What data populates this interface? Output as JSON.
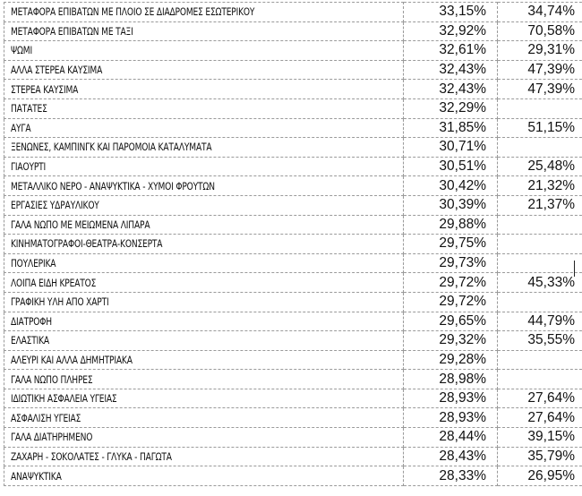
{
  "rows": [
    {
      "name": "ΜΕΤΑΦΟΡΑ ΕΠΙΒΑΤΩΝ ΜΕ ΠΛΟΙΟ ΣΕ ΔΙΑΔΡΟΜΕΣ ΕΣΩΤΕΡΙΚΟΥ",
      "v1": "33,15%",
      "v2": "34,74%"
    },
    {
      "name": "ΜΕΤΑΦΟΡΑ ΕΠΙΒΑΤΩΝ ΜΕ ΤΑΞΙ",
      "v1": "32,92%",
      "v2": "70,58%"
    },
    {
      "name": "ΨΩΜΙ",
      "v1": "32,61%",
      "v2": "29,31%"
    },
    {
      "name": "ΑΛΛΑ ΣΤΕΡΕΑ ΚΑΥΣΙΜΑ",
      "v1": "32,43%",
      "v2": "47,39%"
    },
    {
      "name": "ΣΤΕΡΕΑ ΚΑΥΣΙΜΑ",
      "v1": "32,43%",
      "v2": "47,39%"
    },
    {
      "name": "ΠΑΤΑΤΕΣ",
      "v1": "32,29%",
      "v2": ""
    },
    {
      "name": "ΑΥΓΑ",
      "v1": "31,85%",
      "v2": "51,15%"
    },
    {
      "name": "ΞΕΝΩΝΕΣ, ΚΑΜΠΙΝΓΚ ΚΑΙ ΠΑΡΟΜΟΙΑ ΚΑΤΑΛΥΜΑΤΑ",
      "v1": "30,71%",
      "v2": ""
    },
    {
      "name": "ΓΙΑΟΥΡΤΙ",
      "v1": "30,51%",
      "v2": "25,48%"
    },
    {
      "name": "ΜΕΤΑΛΛΙΚΟ ΝΕΡΟ - ΑΝΑΨΥΚΤΙΚΑ - ΧΥΜΟΙ ΦΡΟΥΤΩΝ",
      "v1": "30,42%",
      "v2": "21,32%"
    },
    {
      "name": "ΕΡΓΑΣΙΕΣ ΥΔΡΑΥΛΙΚΟΥ",
      "v1": "30,39%",
      "v2": "21,37%"
    },
    {
      "name": "ΓΑΛΑ ΝΩΠΟ ΜΕ ΜΕΙΩΜΕΝΑ ΛΙΠΑΡΑ",
      "v1": "29,88%",
      "v2": ""
    },
    {
      "name": "ΚΙΝΗΜΑΤΟΓΡΑΦΟΙ-ΘΕΑΤΡΑ-ΚΟΝΣΕΡΤΑ",
      "v1": "29,75%",
      "v2": ""
    },
    {
      "name": "ΠΟΥΛΕΡΙΚΑ",
      "v1": "29,73%",
      "v2": ""
    },
    {
      "name": "ΛΟΙΠΑ ΕΙΔΗ ΚΡΕΑΤΟΣ",
      "v1": "29,72%",
      "v2": "45,33%"
    },
    {
      "name": "ΓΡΑΦΙΚΗ ΥΛΗ ΑΠΟ ΧΑΡΤΙ",
      "v1": "29,72%",
      "v2": ""
    },
    {
      "name": "ΔΙΑΤΡΟΦΗ",
      "v1": "29,65%",
      "v2": "44,79%"
    },
    {
      "name": "ΕΛΑΣΤΙΚΑ",
      "v1": "29,32%",
      "v2": "35,55%"
    },
    {
      "name": "ΑΛΕΥΡΙ ΚΑΙ ΑΛΛΑ ΔΗΜΗΤΡΙΑΚΑ",
      "v1": "29,28%",
      "v2": ""
    },
    {
      "name": "ΓΑΛΑ ΝΩΠΟ ΠΛΗΡΕΣ",
      "v1": "28,98%",
      "v2": ""
    },
    {
      "name": "ΙΔΙΩΤΙΚΗ ΑΣΦΑΛΕΙΑ ΥΓΕΙΑΣ",
      "v1": "28,93%",
      "v2": "27,64%"
    },
    {
      "name": "ΑΣΦΑΛΙΣΗ ΥΓΕΙΑΣ",
      "v1": "28,93%",
      "v2": "27,64%"
    },
    {
      "name": "ΓΑΛΑ ΔΙΑΤΗΡΗΜΕΝΟ",
      "v1": "28,44%",
      "v2": "39,15%"
    },
    {
      "name": "ΖΑΧΑΡΗ - ΣΟΚΟΛΑΤΕΣ - ΓΛΥΚΑ - ΠΑΓΩΤΑ",
      "v1": "28,43%",
      "v2": "35,79%"
    },
    {
      "name": "ΑΝΑΨΥΚΤΙΚΑ",
      "v1": "28,33%",
      "v2": "26,95%"
    }
  ]
}
